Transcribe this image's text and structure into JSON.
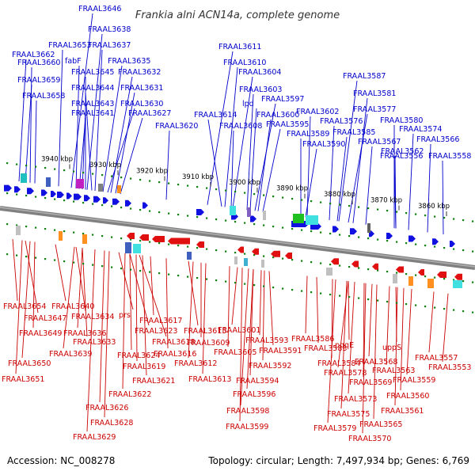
{
  "header": {
    "title": "Frankia alni ACN14a, complete genome"
  },
  "footer": {
    "accession": "Accession: NC_008278",
    "summary": "Topology: circular; Length: 7,497,934 bp; Genes: 6,769"
  },
  "colors": {
    "forward": "#1010e0",
    "reverse": "#e01010",
    "backbone": "#808080",
    "tick": "#108010",
    "label_forward": "#0000cc",
    "label_reverse": "#cc0000"
  },
  "scale_labels": [
    "3940 kbp",
    "3930 kbp",
    "3920 kbp",
    "3910 kbp",
    "3900 kbp",
    "3890 kbp",
    "3880 kbp",
    "3870 kbp",
    "3860 kbp"
  ],
  "top_labels": [
    "FRAAL3646",
    "FRAAL3638",
    "FRAAL3653",
    "FRAAL3637",
    "FRAAL3662",
    "fabF",
    "FRAAL3660",
    "FRAAL3635",
    "FRAAL3645",
    "FRAAL3632",
    "FRAAL3659",
    "FRAAL3644",
    "FRAAL3631",
    "FRAAL3658",
    "FRAAL3643",
    "FRAAL3630",
    "FRAAL3641",
    "FRAAL3627",
    "FRAAL3620",
    "FRAAL3611",
    "FRAAL3610",
    "FRAAL3604",
    "FRAAL3603",
    "lpd",
    "FRAAL3597",
    "FRAAL3614",
    "FRAAL3600",
    "FRAAL3608",
    "FRAAL3595",
    "FRAAL3602",
    "FRAAL3589",
    "FRAAL3590",
    "FRAAL3587",
    "FRAAL3581",
    "FRAAL3577",
    "FRAAL3576",
    "FRAAL3585",
    "FRAAL3580",
    "FRAAL3567",
    "FRAAL3574",
    "FRAAL3562",
    "FRAAL3566",
    "FRAAL3558",
    "FRAAL3556"
  ],
  "bottom_labels": [
    "FRAAL3654",
    "FRAAL3640",
    "FRAAL3647",
    "FRAAL3634",
    "prs",
    "FRAAL3649",
    "FRAAL3636",
    "FRAAL3617",
    "FRAAL3633",
    "FRAAL3623",
    "FRAAL3618",
    "FRAAL3615",
    "FRAAL3601",
    "FRAAL3639",
    "FRAAL3624",
    "FRAAL3616",
    "FRAAL3609",
    "FRAAL3605",
    "FRAAL3593",
    "FRAAL3591",
    "FRAAL3650",
    "FRAAL3619",
    "FRAAL3612",
    "FRAAL3592",
    "FRAAL3651",
    "FRAAL3621",
    "FRAAL3613",
    "FRAAL3594",
    "FRAAL3622",
    "FRAAL3596",
    "FRAAL3626",
    "FRAAL3598",
    "FRAAL3628",
    "FRAAL3599",
    "FRAAL3629",
    "FRAAL3586",
    "FRAAL3583",
    "FRAAL3584",
    "pqqE",
    "uppS",
    "FRAAL3578",
    "FRAAL3568",
    "FRAAL3563",
    "FRAAL3557",
    "FRAAL3553",
    "FRAAL3569",
    "FRAAL3559",
    "FRAAL3573",
    "FRAAL3560",
    "FRAAL3575",
    "FRAAL3561",
    "FRAAL3579",
    "FRAAL3565",
    "FRAAL3570"
  ]
}
